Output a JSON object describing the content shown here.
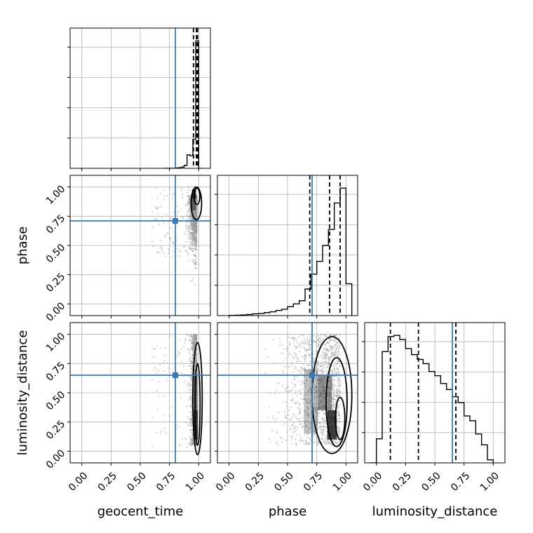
{
  "chart_data": {
    "type": "corner",
    "parameters": [
      "geocent_time",
      "phase",
      "luminosity_distance"
    ],
    "tick_labels": [
      "0.00",
      "0.25",
      "0.50",
      "0.75",
      "1.00"
    ],
    "axis_range": [
      -0.1,
      1.1
    ],
    "grid": true,
    "colors": {
      "truth": "#3d7ab5",
      "hist": "#000000",
      "quantile": "#000000",
      "grid": "#b0b0b0",
      "points": "#9a9a9a",
      "density_dark": "#111111"
    },
    "truths": {
      "geocent_time": 0.8,
      "phase": 0.71,
      "luminosity_distance": 0.65
    },
    "quantiles": {
      "geocent_time": [
        0.955,
        0.98,
        0.99
      ],
      "phase": [
        0.69,
        0.86,
        0.95
      ],
      "luminosity_distance": [
        0.12,
        0.36,
        0.68
      ]
    },
    "histograms": {
      "geocent_time": {
        "edges": [
          0.7,
          0.725,
          0.75,
          0.775,
          0.8,
          0.825,
          0.85,
          0.875,
          0.9,
          0.925,
          0.95,
          0.975,
          1.0,
          1.025
        ],
        "counts": [
          0,
          0,
          0,
          0,
          2,
          3,
          6,
          15,
          70,
          65,
          150,
          660,
          0
        ]
      },
      "phase": {
        "edges": [
          0.0,
          0.05,
          0.1,
          0.15,
          0.2,
          0.25,
          0.3,
          0.35,
          0.4,
          0.45,
          0.5,
          0.55,
          0.6,
          0.65,
          0.7,
          0.75,
          0.8,
          0.85,
          0.9,
          0.95,
          1.0,
          1.05
        ],
        "counts": [
          1,
          2,
          3,
          5,
          8,
          10,
          14,
          18,
          24,
          30,
          42,
          55,
          70,
          125,
          195,
          255,
          330,
          405,
          530,
          600,
          150
        ]
      },
      "luminosity_distance": {
        "edges": [
          -0.05,
          0.0,
          0.05,
          0.1,
          0.15,
          0.2,
          0.25,
          0.3,
          0.35,
          0.4,
          0.45,
          0.5,
          0.55,
          0.6,
          0.65,
          0.7,
          0.75,
          0.8,
          0.85,
          0.9,
          0.95,
          1.0
        ],
        "counts": [
          0,
          40,
          185,
          210,
          212,
          205,
          190,
          180,
          172,
          165,
          152,
          145,
          132,
          122,
          110,
          100,
          78,
          70,
          48,
          30,
          5
        ]
      }
    }
  }
}
